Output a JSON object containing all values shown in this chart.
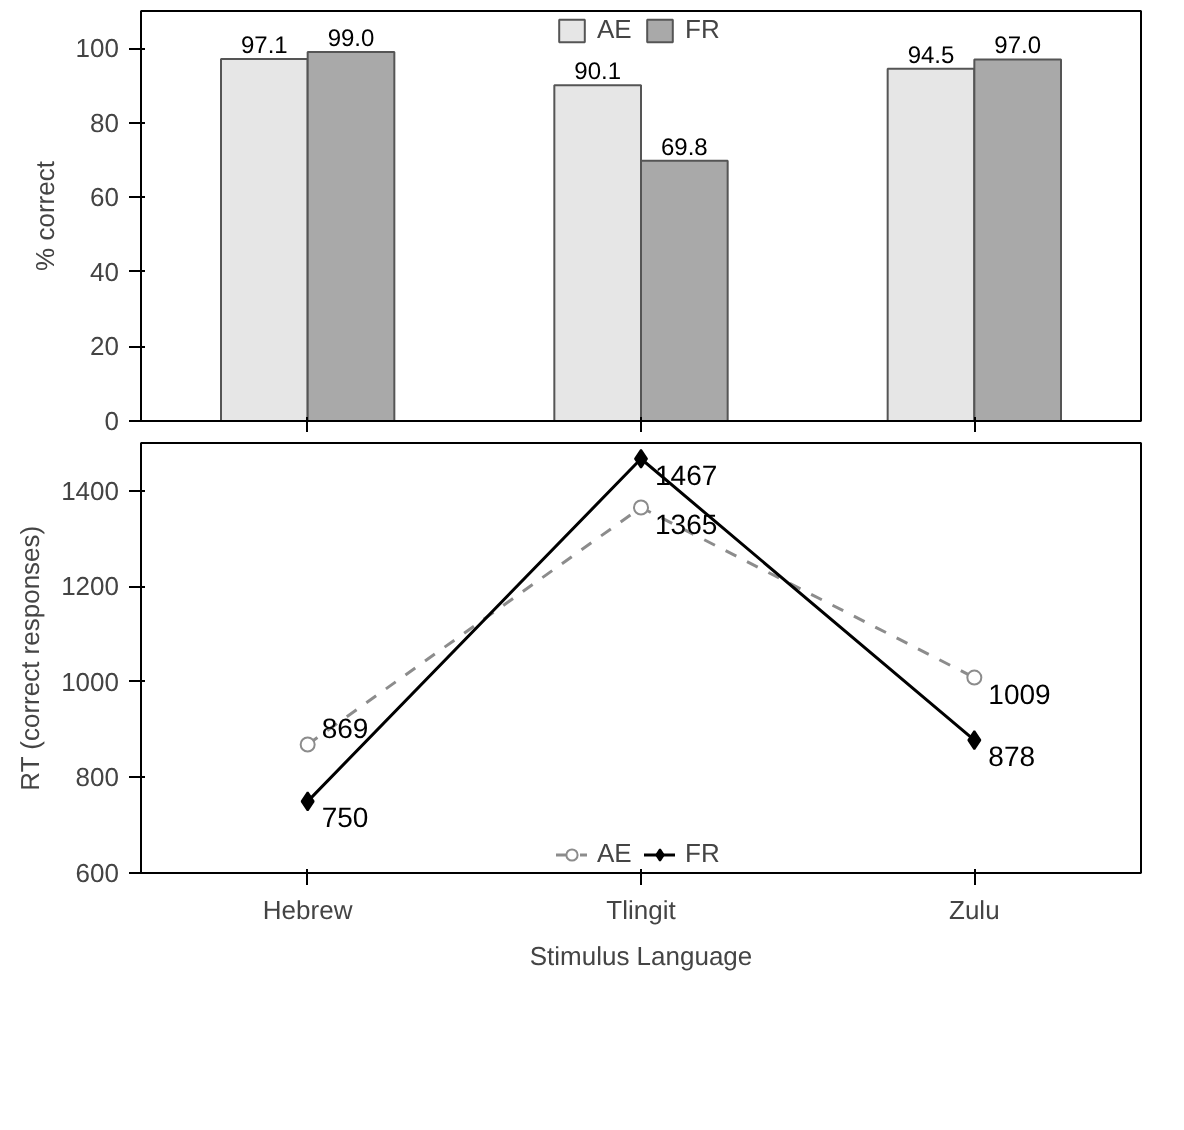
{
  "chart_data": [
    {
      "type": "bar",
      "categories": [
        null,
        null,
        null
      ],
      "ylabel": "% correct",
      "ylim": [
        0,
        110
      ],
      "yticks": [
        0,
        20,
        40,
        60,
        80,
        100
      ],
      "grid": false,
      "legend": "top",
      "tick_labels": "y",
      "series": [
        {
          "name": "AE",
          "color": "#e6e6e6",
          "values": [
            97.1,
            90.1,
            94.5
          ],
          "value_labels": [
            "97.1",
            "90.1",
            "94.5"
          ]
        },
        {
          "name": "FR",
          "color": "#a9a9a9",
          "values": [
            99.0,
            69.8,
            97.0
          ],
          "value_labels": [
            "99.0",
            "69.8",
            "97.0"
          ]
        }
      ]
    },
    {
      "type": "line",
      "categories": [
        "Hebrew",
        "Tlingit",
        "Zulu"
      ],
      "xlabel": "Stimulus Language",
      "ylabel": "RT (correct responses)",
      "ylim": [
        600,
        1500
      ],
      "yticks": [
        600,
        800,
        1000,
        1200,
        1400
      ],
      "grid": false,
      "legend": "bottom",
      "data_labels": true,
      "series": [
        {
          "name": "AE",
          "color": "#8c8c8c",
          "values": [
            869,
            1365,
            1009
          ],
          "marker": "circle",
          "line_style": "dashed"
        },
        {
          "name": "FR",
          "color": "#000000",
          "values": [
            750,
            1467,
            878
          ],
          "marker": "diamond",
          "line_style": "solid"
        }
      ]
    }
  ]
}
